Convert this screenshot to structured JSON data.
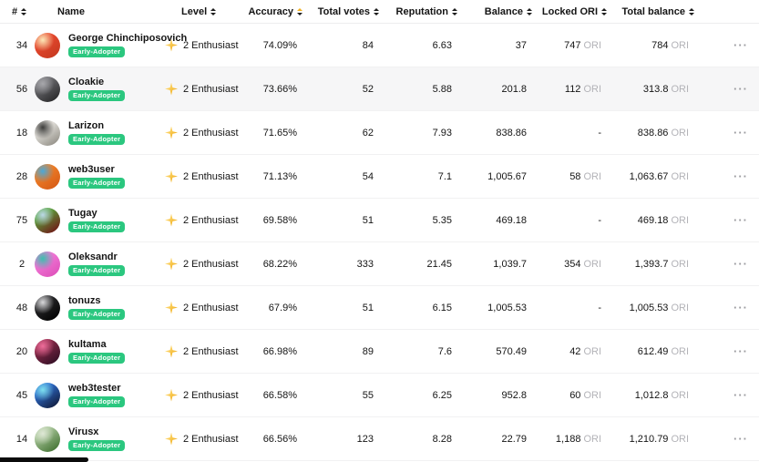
{
  "table": {
    "columns": [
      {
        "key": "rank",
        "label": "#",
        "sortable": true,
        "active": false,
        "align": "left"
      },
      {
        "key": "name",
        "label": "Name",
        "sortable": false,
        "active": false,
        "align": "left"
      },
      {
        "key": "level",
        "label": "Level",
        "sortable": true,
        "active": false,
        "align": "left"
      },
      {
        "key": "accuracy",
        "label": "Accuracy",
        "sortable": true,
        "active": true,
        "align": "right"
      },
      {
        "key": "total_votes",
        "label": "Total votes",
        "sortable": true,
        "active": false,
        "align": "right"
      },
      {
        "key": "reputation",
        "label": "Reputation",
        "sortable": true,
        "active": false,
        "align": "right"
      },
      {
        "key": "balance",
        "label": "Balance",
        "sortable": true,
        "active": false,
        "align": "right"
      },
      {
        "key": "locked_ori",
        "label": "Locked ORI",
        "sortable": true,
        "active": false,
        "align": "right"
      },
      {
        "key": "total_balance",
        "label": "Total balance",
        "sortable": true,
        "active": false,
        "align": "right"
      }
    ],
    "rows": [
      {
        "rank": "34",
        "name": "George Chinchiposovich",
        "badge": "Early-Adopter",
        "level": "2 Enthusiast",
        "accuracy": "74.09%",
        "total_votes": "84",
        "reputation": "6.63",
        "balance": "37",
        "locked": "747",
        "locked_unit": "ORI",
        "total": "784",
        "total_unit": "ORI",
        "highlighted": false,
        "avatar": {
          "c1": "#e8492f",
          "c2": "#c93b22",
          "c3": "#fce9b8"
        }
      },
      {
        "rank": "56",
        "name": "Cloakie",
        "badge": "Early-Adopter",
        "level": "2 Enthusiast",
        "accuracy": "73.66%",
        "total_votes": "52",
        "reputation": "5.88",
        "balance": "201.8",
        "locked": "112",
        "locked_unit": "ORI",
        "total": "313.8",
        "total_unit": "ORI",
        "highlighted": true,
        "avatar": {
          "c1": "#6f6f73",
          "c2": "#2e2e30",
          "c3": "#a8a8ac"
        }
      },
      {
        "rank": "18",
        "name": "Larizon",
        "badge": "Early-Adopter",
        "level": "2 Enthusiast",
        "accuracy": "71.65%",
        "total_votes": "62",
        "reputation": "7.93",
        "balance": "838.86",
        "locked": "-",
        "locked_unit": "",
        "total": "838.86",
        "total_unit": "ORI",
        "highlighted": false,
        "avatar": {
          "c1": "#eceae5",
          "c2": "#9a978f",
          "c3": "#3c3c3a"
        }
      },
      {
        "rank": "28",
        "name": "web3user",
        "badge": "Early-Adopter",
        "level": "2 Enthusiast",
        "accuracy": "71.13%",
        "total_votes": "54",
        "reputation": "7.1",
        "balance": "1,005.67",
        "locked": "58",
        "locked_unit": "ORI",
        "total": "1,063.67",
        "total_unit": "ORI",
        "highlighted": false,
        "avatar": {
          "c1": "#f08229",
          "c2": "#d95f18",
          "c3": "#4aa8d8"
        }
      },
      {
        "rank": "75",
        "name": "Tugay",
        "badge": "Early-Adopter",
        "level": "2 Enthusiast",
        "accuracy": "69.58%",
        "total_votes": "51",
        "reputation": "5.35",
        "balance": "469.18",
        "locked": "-",
        "locked_unit": "",
        "total": "469.18",
        "total_unit": "ORI",
        "highlighted": false,
        "avatar": {
          "c1": "#5aa63e",
          "c2": "#6e241a",
          "c3": "#bcd8e8"
        }
      },
      {
        "rank": "2",
        "name": "Oleksandr",
        "badge": "Early-Adopter",
        "level": "2 Enthusiast",
        "accuracy": "68.22%",
        "total_votes": "333",
        "reputation": "21.45",
        "balance": "1,039.7",
        "locked": "354",
        "locked_unit": "ORI",
        "total": "1,393.7",
        "total_unit": "ORI",
        "highlighted": false,
        "avatar": {
          "c1": "#f27ad8",
          "c2": "#e055bd",
          "c3": "#3bbfae"
        }
      },
      {
        "rank": "48",
        "name": "tonuzs",
        "badge": "Early-Adopter",
        "level": "2 Enthusiast",
        "accuracy": "67.9%",
        "total_votes": "51",
        "reputation": "6.15",
        "balance": "1,005.53",
        "locked": "-",
        "locked_unit": "",
        "total": "1,005.53",
        "total_unit": "ORI",
        "highlighted": false,
        "avatar": {
          "c1": "#2a2a2c",
          "c2": "#050505",
          "c3": "#d9d9db"
        }
      },
      {
        "rank": "20",
        "name": "kultama",
        "badge": "Early-Adopter",
        "level": "2 Enthusiast",
        "accuracy": "66.98%",
        "total_votes": "89",
        "reputation": "7.6",
        "balance": "570.49",
        "locked": "42",
        "locked_unit": "ORI",
        "total": "612.49",
        "total_unit": "ORI",
        "highlighted": false,
        "avatar": {
          "c1": "#8c2b4a",
          "c2": "#3a1228",
          "c3": "#ef6e9b"
        }
      },
      {
        "rank": "45",
        "name": "web3tester",
        "badge": "Early-Adopter",
        "level": "2 Enthusiast",
        "accuracy": "66.58%",
        "total_votes": "55",
        "reputation": "6.25",
        "balance": "952.8",
        "locked": "60",
        "locked_unit": "ORI",
        "total": "1,012.8",
        "total_unit": "ORI",
        "highlighted": false,
        "avatar": {
          "c1": "#2f6fd0",
          "c2": "#14244a",
          "c3": "#7ee0ee"
        }
      },
      {
        "rank": "14",
        "name": "Virusx",
        "badge": "Early-Adopter",
        "level": "2 Enthusiast",
        "accuracy": "66.56%",
        "total_votes": "123",
        "reputation": "8.28",
        "balance": "22.79",
        "locked": "1,188",
        "locked_unit": "ORI",
        "total": "1,210.79",
        "total_unit": "ORI",
        "highlighted": false,
        "avatar": {
          "c1": "#a9c69a",
          "c2": "#4c7a3c",
          "c3": "#dfe8d6"
        }
      }
    ]
  },
  "icons": {
    "ellipsis": "···"
  },
  "colors": {
    "badge_green": "#2bc77f",
    "sort_active_yellow": "#f2b01e",
    "level_star_gold": "#f2b01e",
    "ori_unit_gray": "#b3b3b8",
    "row_highlight": "#f6f6f7",
    "text": "#141414"
  }
}
